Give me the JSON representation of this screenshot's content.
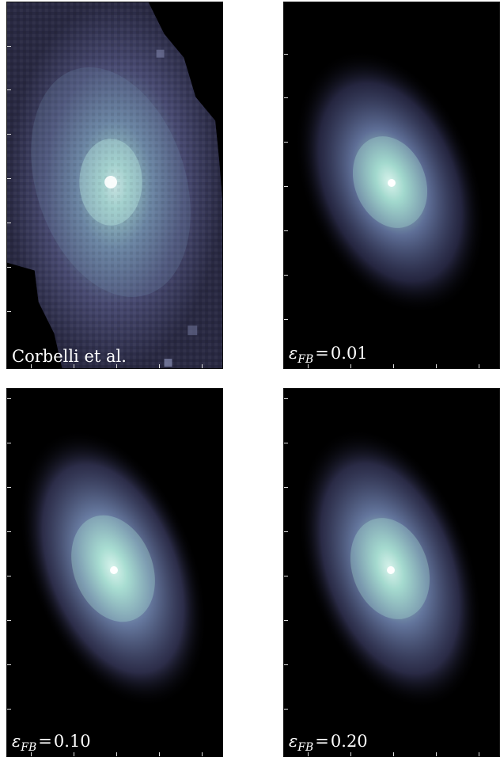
{
  "panels": [
    {
      "id": "observed",
      "label_plain": "Corbelli et al.",
      "label_kind": "text"
    },
    {
      "id": "sim-001",
      "label_epsilon": "ε",
      "label_sub": "FB",
      "label_eq": "=",
      "label_value": "0.01",
      "label_kind": "math"
    },
    {
      "id": "sim-010",
      "label_epsilon": "ε",
      "label_sub": "FB",
      "label_eq": "=",
      "label_value": "0.10",
      "label_kind": "math"
    },
    {
      "id": "sim-020",
      "label_epsilon": "ε",
      "label_sub": "FB",
      "label_eq": "=",
      "label_value": "0.20",
      "label_kind": "math"
    }
  ],
  "colors": {
    "background": "#000000",
    "galaxy_core": "#e8fff8",
    "galaxy_inner": "#8fc9c0",
    "galaxy_outer": "#5a5f8c",
    "observed_tile": "#3a3c5c"
  }
}
